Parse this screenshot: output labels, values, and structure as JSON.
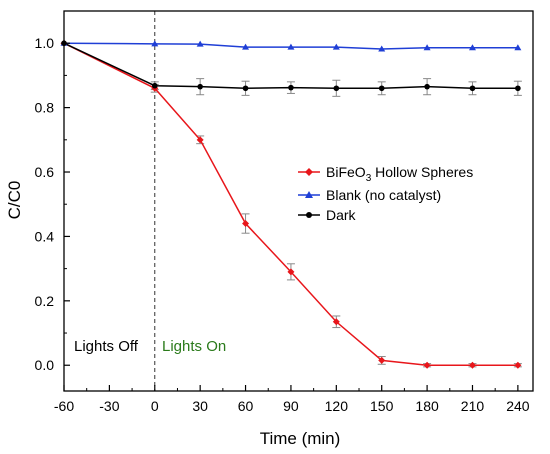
{
  "chart_data": {
    "type": "line",
    "title": "",
    "xlabel": "Time (min)",
    "ylabel": "C/C0",
    "xlim": [
      -60,
      250
    ],
    "ylim": [
      -0.08,
      1.1
    ],
    "xticks": [
      -60,
      -30,
      0,
      30,
      60,
      90,
      120,
      150,
      180,
      210,
      240
    ],
    "yticks": [
      0.0,
      0.2,
      0.4,
      0.6,
      0.8,
      1.0
    ],
    "ytick_labels": [
      "0.0",
      "0.2",
      "0.4",
      "0.6",
      "0.8",
      "1.0"
    ],
    "grid": false,
    "legend_position": "center-right",
    "series": [
      {
        "name_main": "BiFeO",
        "name_sub": "3",
        "name_rest": " Hollow Spheres",
        "color": "#e8161b",
        "marker": "diamond",
        "x": [
          -60,
          0,
          30,
          60,
          90,
          120,
          150,
          180,
          210,
          240
        ],
        "y": [
          1.0,
          0.86,
          0.7,
          0.44,
          0.29,
          0.135,
          0.015,
          0.0,
          0.0,
          0.0
        ],
        "err": [
          0,
          0.012,
          0.012,
          0.03,
          0.025,
          0.018,
          0.012,
          0.005,
          0.005,
          0.005
        ]
      },
      {
        "name_main": "Blank (no catalyst)",
        "name_sub": "",
        "name_rest": "",
        "color": "#1f3fd6",
        "marker": "triangle",
        "x": [
          -60,
          0,
          30,
          60,
          90,
          120,
          150,
          180,
          210,
          240
        ],
        "y": [
          1.0,
          0.998,
          0.997,
          0.988,
          0.988,
          0.988,
          0.982,
          0.986,
          0.986,
          0.986
        ],
        "err": [
          0,
          0,
          0,
          0,
          0,
          0,
          0,
          0,
          0,
          0
        ]
      },
      {
        "name_main": "Dark",
        "name_sub": "",
        "name_rest": "",
        "color": "#000000",
        "marker": "circle",
        "x": [
          -60,
          0,
          30,
          60,
          90,
          120,
          150,
          180,
          210,
          240
        ],
        "y": [
          1.0,
          0.868,
          0.865,
          0.86,
          0.862,
          0.86,
          0.86,
          0.865,
          0.86,
          0.86
        ],
        "err": [
          0,
          0.012,
          0.025,
          0.022,
          0.018,
          0.025,
          0.02,
          0.025,
          0.02,
          0.022
        ]
      }
    ],
    "annotations": [
      {
        "text": "Lights Off",
        "color": "#000000"
      },
      {
        "text": "Lights On",
        "color": "#2a7a1a"
      }
    ],
    "divider_x": 0
  }
}
